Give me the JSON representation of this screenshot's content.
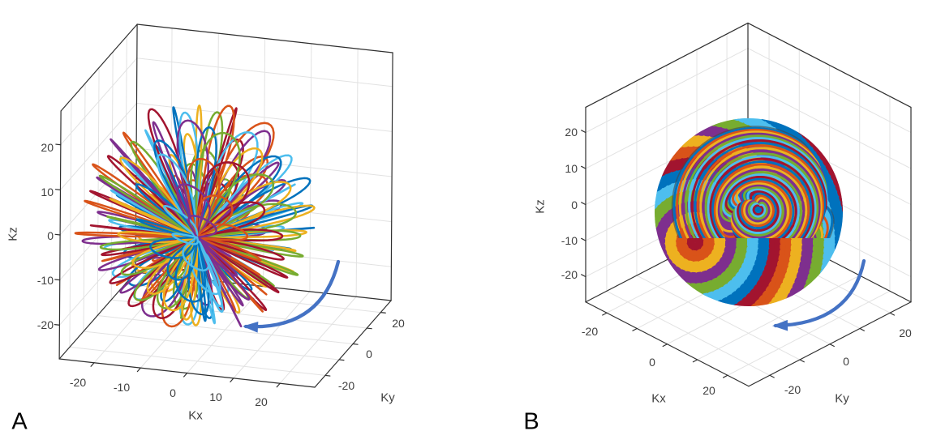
{
  "figure": {
    "background": "#ffffff",
    "panel_labels": [
      "A",
      "B"
    ],
    "arrow_color": "#4472C4",
    "palette": [
      "#0072BD",
      "#D95319",
      "#EDB120",
      "#7E2F8E",
      "#77AC30",
      "#4DBEEE",
      "#A2142F"
    ]
  },
  "chart_data": [
    {
      "panel": "A",
      "type": "line3d",
      "description": "Center-out 3D radial petal ('koosh-ball') k-space trajectories of multicolored interleaves filling a sphere; blue curved arrow indicates counterclockwise rotation of successive interleaves about Kz.",
      "xlabel": "Kx",
      "ylabel": "Ky",
      "zlabel": "Kz",
      "xlim": [
        -27.5,
        27.5
      ],
      "ylim": [
        -27.5,
        27.5
      ],
      "zlim": [
        -27.5,
        27.5
      ],
      "x_ticks": [
        -20,
        -10,
        0,
        10,
        20
      ],
      "y_ticks": [
        20,
        0,
        -20
      ],
      "z_ticks": [
        20,
        10,
        0,
        -10,
        -20
      ],
      "x_tick_labels": [
        "-20",
        "-10",
        "0",
        "10",
        "20"
      ],
      "y_tick_labels": [
        "20",
        "0",
        "-20"
      ],
      "z_tick_labels": [
        "20",
        "10",
        "0",
        "-10",
        "-20"
      ],
      "grid_step": 10,
      "k_max": 25,
      "n_interleaves": 170,
      "grid": true,
      "rotation_arrow": "counterclockwise"
    },
    {
      "panel": "B",
      "type": "line3d",
      "description": "3D spiral/rosette k-space trajectories forming a sphere: multicolor latitude-like dashed bands about a tilted axis with a dense multicolor spiral cut-plane disc facing the viewer; blue curved arrow indicates counterclockwise rotation.",
      "xlabel": "Kx",
      "ylabel": "Ky",
      "zlabel": "Kz",
      "xlim": [
        -27,
        27
      ],
      "ylim": [
        -27,
        27
      ],
      "zlim": [
        -27,
        27
      ],
      "x_ticks": [
        -20,
        0,
        20
      ],
      "y_ticks": [
        -20,
        0,
        20
      ],
      "z_ticks": [
        20,
        10,
        0,
        -10,
        -20
      ],
      "x_tick_labels": [
        "-20",
        "0",
        "20"
      ],
      "y_tick_labels": [
        "-20",
        "0",
        "20"
      ],
      "z_tick_labels": [
        "20",
        "10",
        "0",
        "-10",
        "-20"
      ],
      "grid_step": 10,
      "k_max": 22,
      "n_bands": 16,
      "n_spiral_rings": 36,
      "grid": true,
      "rotation_arrow": "counterclockwise"
    }
  ]
}
